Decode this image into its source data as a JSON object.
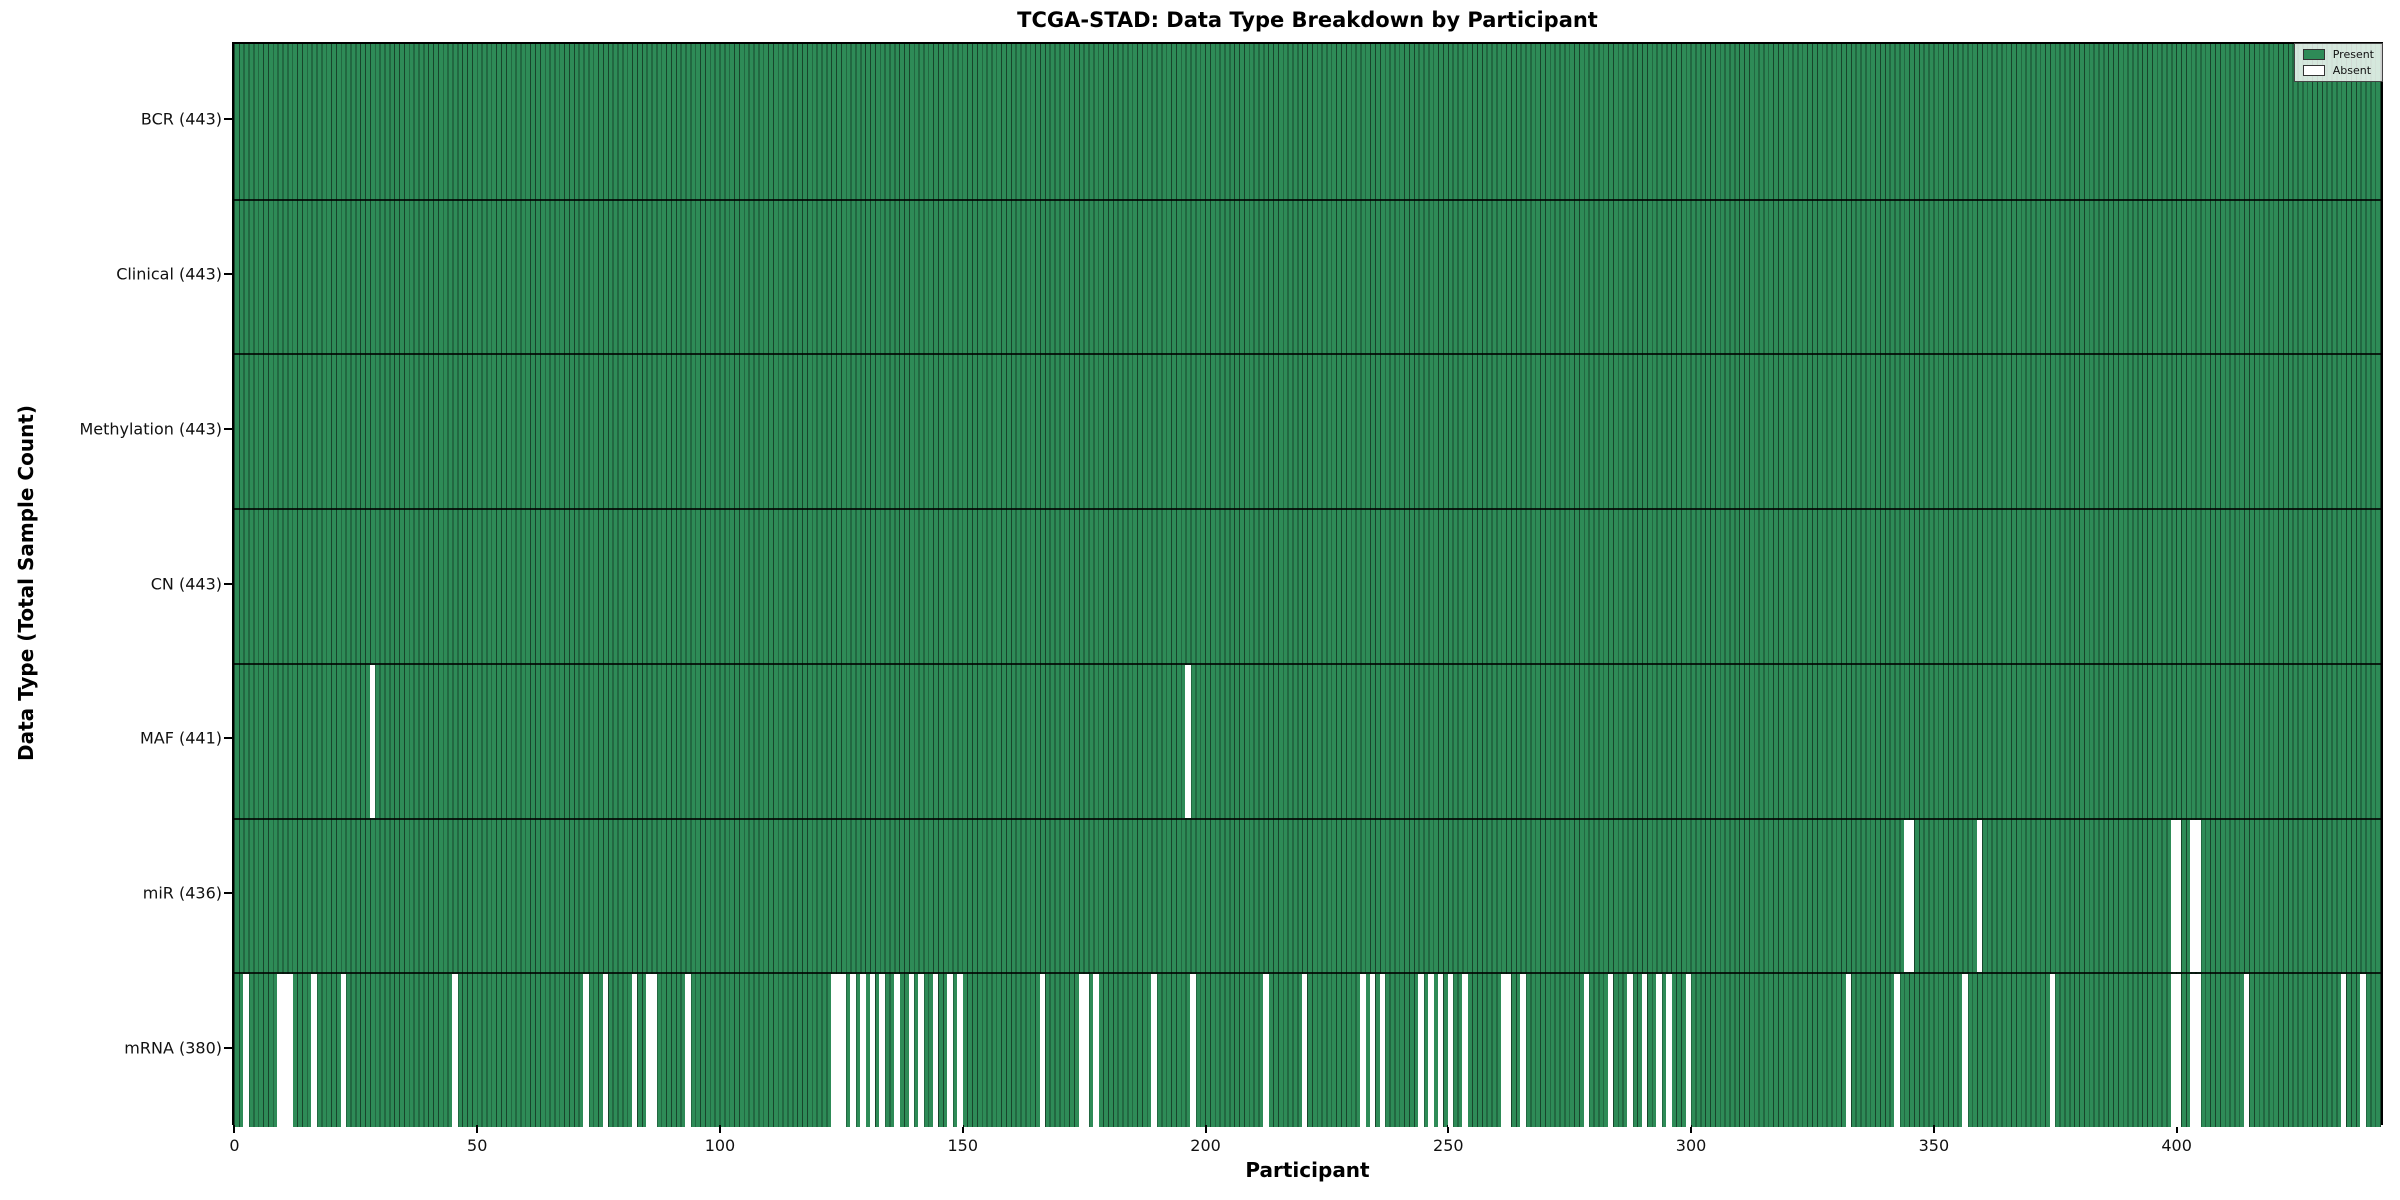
{
  "chart_data": {
    "type": "heatmap",
    "title": "TCGA-STAD: Data Type Breakdown by Participant",
    "xlabel": "Participant",
    "ylabel": "Data Type (Total Sample Count)",
    "n_participants": 443,
    "xlim": [
      -0.5,
      442.5
    ],
    "x_ticks": [
      0,
      50,
      100,
      150,
      200,
      250,
      300,
      350,
      400
    ],
    "grid": false,
    "legend_position": "upper right",
    "legend": [
      {
        "label": "Present",
        "color": "#2E8B57"
      },
      {
        "label": "Absent",
        "color": "#FFFFFF"
      }
    ],
    "colors": {
      "present": "#2E8B57",
      "absent": "#FFFFFF",
      "bar_edge": "rgba(0,0,0,0.5)",
      "frame": "#000000"
    },
    "rows": [
      {
        "label": "BCR (443)",
        "data_type": "BCR",
        "present_count": 443,
        "absent_participants": []
      },
      {
        "label": "Clinical (443)",
        "data_type": "Clinical",
        "present_count": 443,
        "absent_participants": []
      },
      {
        "label": "Methylation (443)",
        "data_type": "Methylation",
        "present_count": 443,
        "absent_participants": []
      },
      {
        "label": "CN (443)",
        "data_type": "CN",
        "present_count": 443,
        "absent_participants": []
      },
      {
        "label": "MAF (441)",
        "data_type": "MAF",
        "present_count": 441,
        "absent_participants": [
          28,
          196
        ]
      },
      {
        "label": "miR (436)",
        "data_type": "miR",
        "present_count": 436,
        "absent_participants": [
          344,
          345,
          359,
          399,
          400,
          403,
          404
        ]
      },
      {
        "label": "mRNA (380)",
        "data_type": "mRNA",
        "present_count": 380,
        "absent_participants": [
          2,
          9,
          10,
          11,
          16,
          22,
          45,
          72,
          76,
          82,
          85,
          86,
          93,
          123,
          124,
          125,
          127,
          129,
          131,
          133,
          136,
          139,
          141,
          144,
          147,
          149,
          166,
          174,
          175,
          177,
          189,
          197,
          212,
          220,
          232,
          234,
          236,
          244,
          246,
          248,
          250,
          253,
          261,
          262,
          265,
          278,
          283,
          287,
          290,
          293,
          295,
          299,
          332,
          342,
          356,
          374,
          399,
          400,
          403,
          404,
          414,
          434,
          438
        ]
      }
    ]
  }
}
